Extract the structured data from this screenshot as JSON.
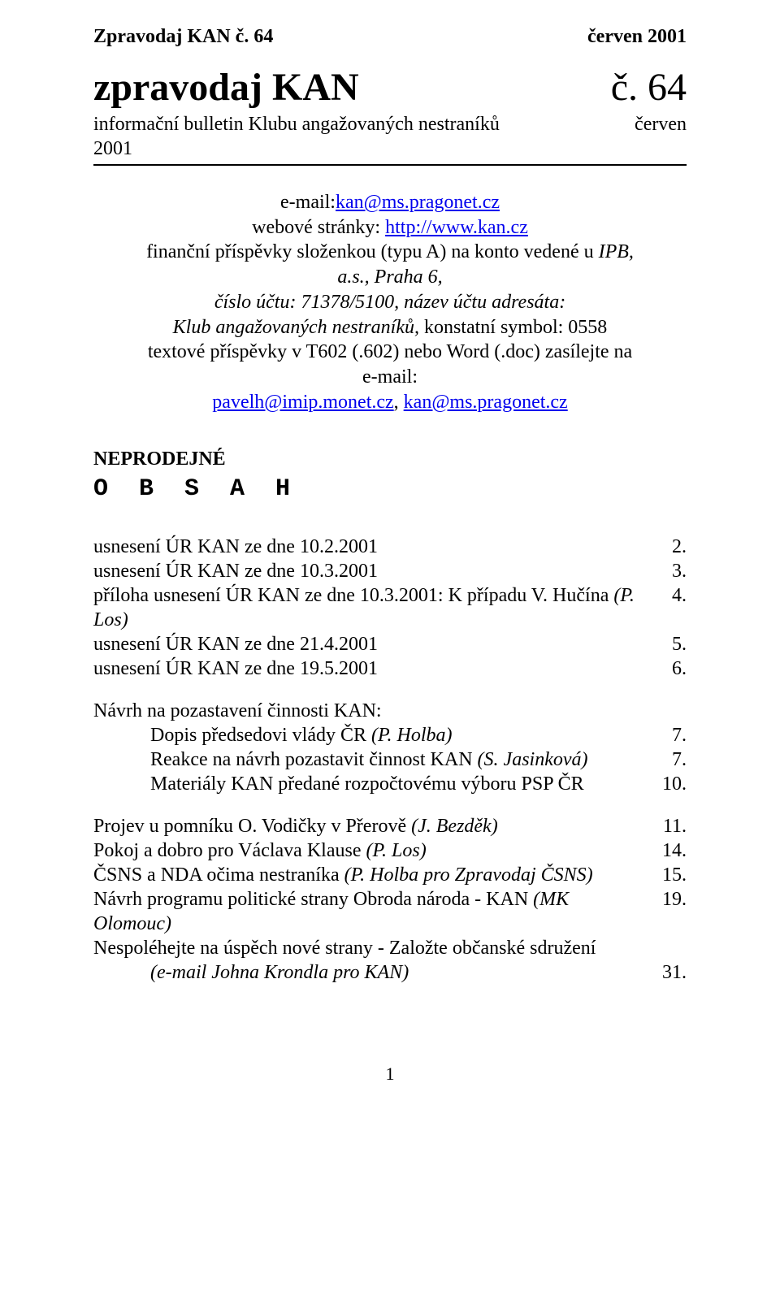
{
  "header": {
    "left": "Zpravodaj KAN č. 64",
    "right": "červen 2001"
  },
  "title": {
    "main": "zpravodaj KAN",
    "issue": "č. 64",
    "subtitle_left": "informační bulletin Klubu angažovaných nestraníků",
    "subtitle_right": "červen",
    "year_line": "2001"
  },
  "contact": {
    "email_prefix": "e-mail:",
    "email_link": "kan@ms.pragonet.cz",
    "web_prefix": "webové stránky: ",
    "web_link": "http://www.kan.cz",
    "fin_line1a": "finanční příspěvky složenkou (typu A) na konto vedené u ",
    "fin_line1b": "IPB,  a.s., Praha 6,",
    "fin_line2a": "číslo účtu: 71378/5100, název účtu adresáta:",
    "fin_line3a": "Klub angažovaných nestraníků,",
    "fin_line3b": " konstatní symbol: 0558",
    "text_line": "textové příspěvky v T602 (.602) nebo Word (.doc) zasílejte na e-mail:",
    "contrib_email1": "pavelh@imip.monet.cz",
    "contrib_sep": ", ",
    "contrib_email2": "kan@ms.pragonet.cz"
  },
  "neprodejne": "NEPRODEJNÉ",
  "obsah_heading": "O B S A H",
  "toc": {
    "group1": [
      {
        "label": "usnesení ÚR KAN ze dne 10.2.2001",
        "page": "2."
      },
      {
        "label": "usnesení ÚR KAN ze dne 10.3.2001",
        "page": "3."
      },
      {
        "label_pre": "příloha usnesení ÚR KAN ze dne 10.3.2001: K případu V. Hučína ",
        "label_it": "(P. Los)",
        "page": "4."
      },
      {
        "label": "usnesení ÚR KAN ze dne 21.4.2001",
        "page": "5."
      },
      {
        "label": "usnesení ÚR KAN ze dne 19.5.2001",
        "page": "6."
      }
    ],
    "group2_title": "Návrh na pozastavení činnosti KAN:",
    "group2": [
      {
        "label_pre": "Dopis předsedovi vlády ČR ",
        "label_it": "(P. Holba)",
        "page": "7."
      },
      {
        "label_pre": "Reakce na návrh pozastavit činnost KAN ",
        "label_it": "(S. Jasinková)",
        "page": "7."
      },
      {
        "label": "Materiály KAN předané rozpočtovému výboru PSP ČR",
        "page": "10."
      }
    ],
    "group3": [
      {
        "label_pre": "Projev u pomníku O. Vodičky v Přerově ",
        "label_it": "(J. Bezděk)",
        "page": "11."
      },
      {
        "label_pre": "Pokoj a dobro pro Václava Klause ",
        "label_it": "(P. Los)",
        "page": "14."
      },
      {
        "label_pre": "ČSNS a NDA očima nestraníka ",
        "label_it": "(P. Holba pro Zpravodaj ČSNS)",
        "page": "15."
      },
      {
        "label_pre": "Návrh programu politické strany Obroda národa - KAN ",
        "label_it": "(MK Olomouc)",
        "page": "19."
      }
    ],
    "group3_tail_line1": "Nespoléhejte na úspěch nové strany - Založte občanské sdružení",
    "group3_tail_line2_it": "(e-mail Johna Krondla pro KAN)",
    "group3_tail_page": "31."
  },
  "page_number": "1"
}
